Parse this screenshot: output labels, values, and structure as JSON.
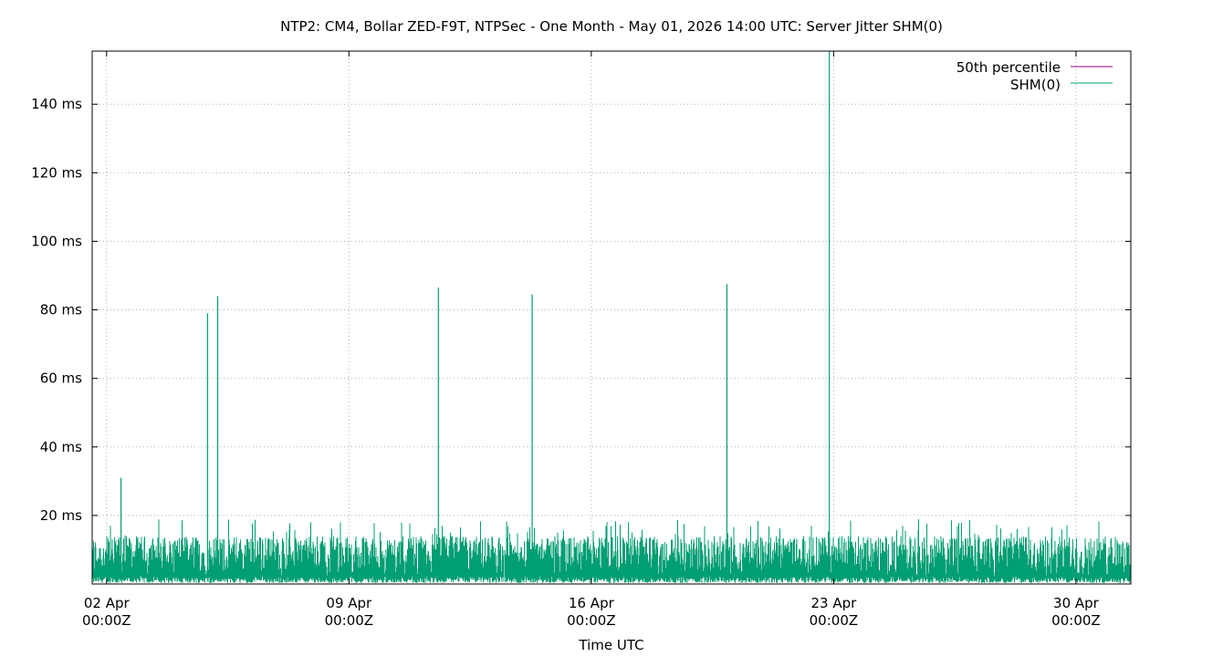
{
  "chart_data": {
    "type": "line",
    "title": "NTP2: CM4, Bollar ZED-F9T, NTPSec - One Month - May 01, 2026 14:00 UTC: Server Jitter SHM(0)",
    "xlabel": "Time UTC",
    "ylabel": "",
    "y_unit": "ms",
    "ylim": [
      0,
      155.5
    ],
    "y_ticks": [
      20,
      40,
      60,
      80,
      100,
      120,
      140
    ],
    "y_tick_labels": [
      "20 ms",
      "40 ms",
      "60 ms",
      "80 ms",
      "100 ms",
      "120 ms",
      "140 ms"
    ],
    "xlim": [
      "2026-04-01T14:00Z",
      "2026-05-01T14:00Z"
    ],
    "x_ticks": [
      {
        "date": "2026-04-02T00:00Z",
        "line1": "02 Apr",
        "line2": "00:00Z"
      },
      {
        "date": "2026-04-09T00:00Z",
        "line1": "09 Apr",
        "line2": "00:00Z"
      },
      {
        "date": "2026-04-16T00:00Z",
        "line1": "16 Apr",
        "line2": "00:00Z"
      },
      {
        "date": "2026-04-23T00:00Z",
        "line1": "23 Apr",
        "line2": "00:00Z"
      },
      {
        "date": "2026-04-30T00:00Z",
        "line1": "30 Apr",
        "line2": "00:00Z"
      }
    ],
    "grid": true,
    "legend_position": "top-right",
    "series": [
      {
        "name": "50th percentile",
        "color": "#94007b",
        "points": []
      },
      {
        "name": "SHM(0)",
        "color": "#009e73",
        "baseline_range_ms": [
          2,
          14
        ],
        "typical_peak_ms": 17,
        "spikes": [
          {
            "x": "2026-04-02T10:00Z",
            "y": 31
          },
          {
            "x": "2026-04-04T22:00Z",
            "y": 79
          },
          {
            "x": "2026-04-05T05:00Z",
            "y": 84
          },
          {
            "x": "2026-04-11T14:00Z",
            "y": 86.5
          },
          {
            "x": "2026-04-14T07:00Z",
            "y": 84.5
          },
          {
            "x": "2026-04-19T22:00Z",
            "y": 87.5
          },
          {
            "x": "2026-04-22T21:00Z",
            "y": 155.5
          }
        ]
      }
    ]
  }
}
